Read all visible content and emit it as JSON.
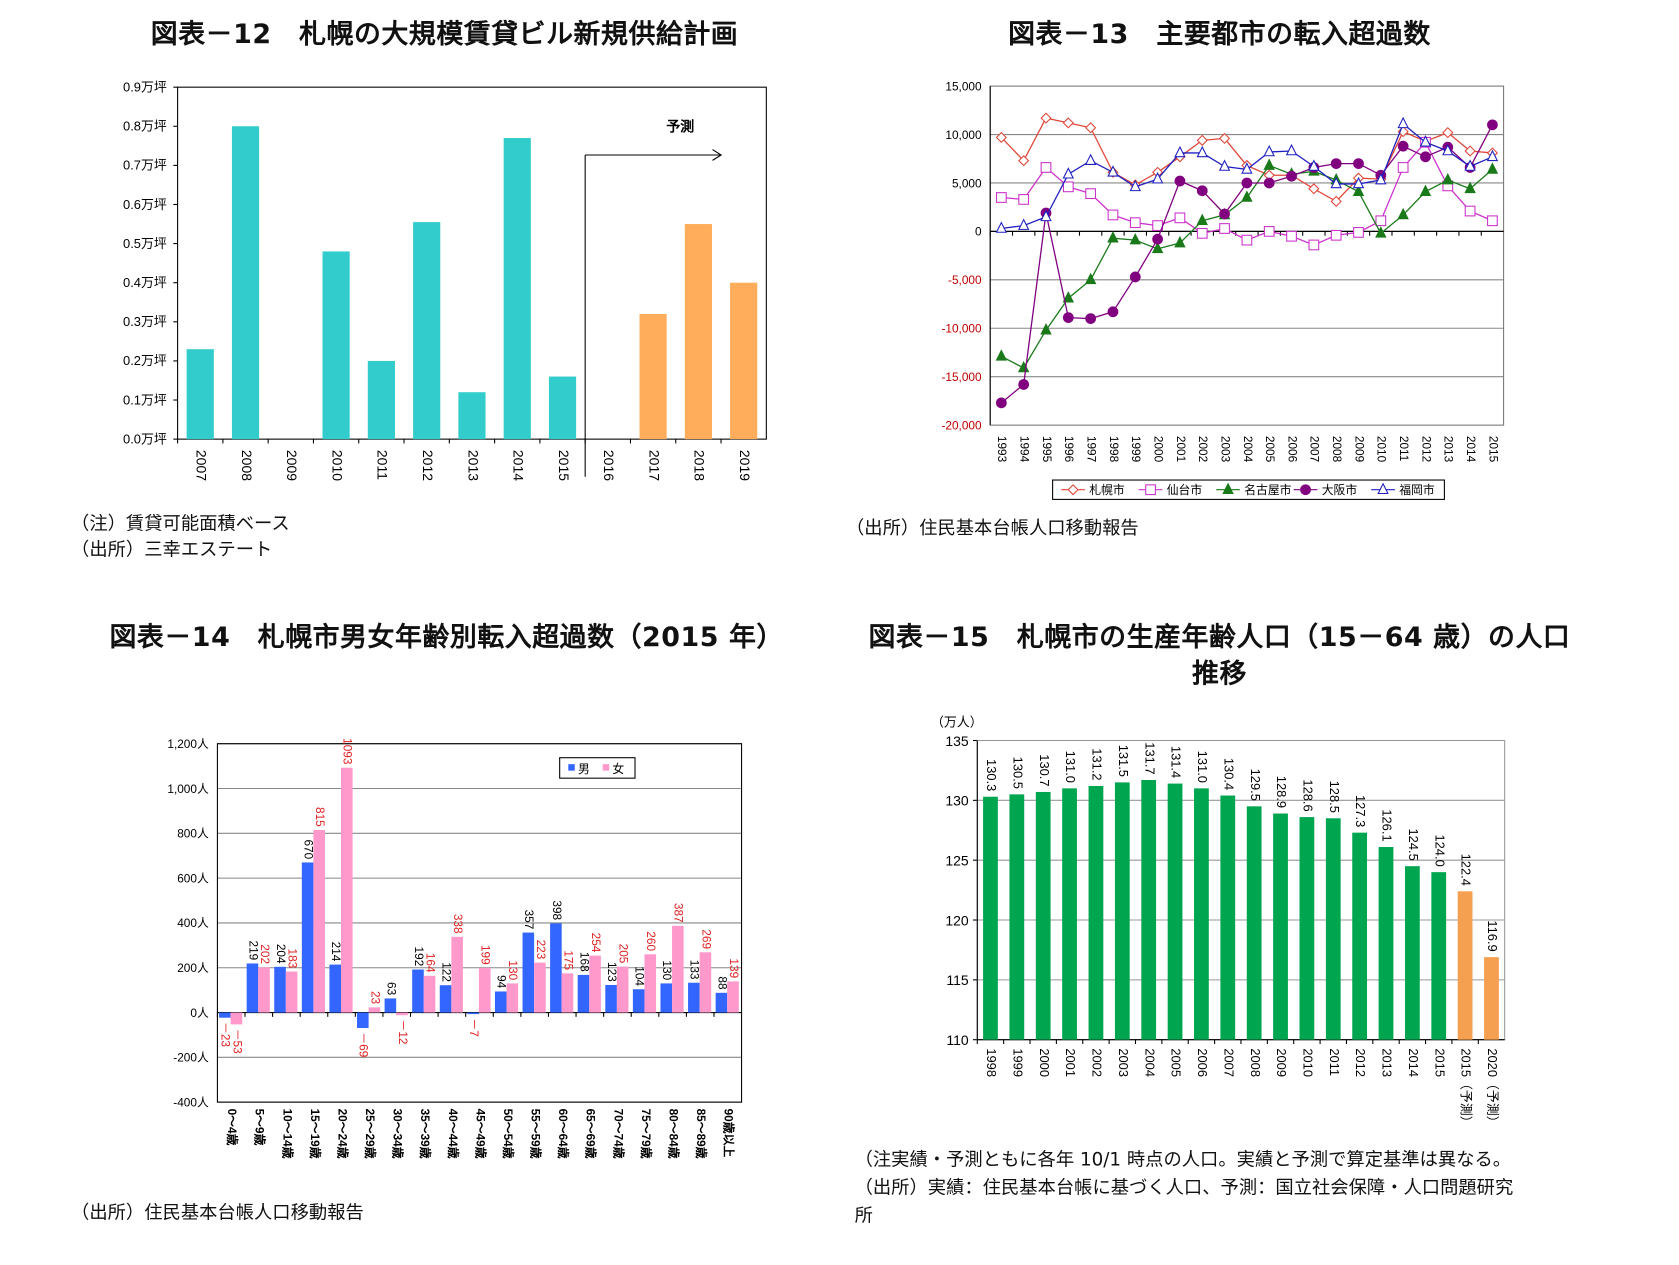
{
  "chart_data": [
    {
      "id": "fig12",
      "type": "bar",
      "title": "図表－12　札幌の大規模賃貸ビル新規供給計画",
      "categories": [
        "2007",
        "2008",
        "2009",
        "2010",
        "2011",
        "2012",
        "2013",
        "2014",
        "2015",
        "2016",
        "2017",
        "2018",
        "2019"
      ],
      "values": [
        0.23,
        0.8,
        0,
        0.48,
        0.2,
        0.555,
        0.12,
        0.77,
        0.16,
        0,
        0.32,
        0.55,
        0.4
      ],
      "forecast": [
        false,
        false,
        false,
        false,
        false,
        false,
        false,
        false,
        false,
        true,
        true,
        true,
        true
      ],
      "ylim": [
        0,
        0.9
      ],
      "yticks": [
        "0.0万坪",
        "0.1万坪",
        "0.2万坪",
        "0.3万坪",
        "0.4万坪",
        "0.5万坪",
        "0.6万坪",
        "0.7万坪",
        "0.8万坪",
        "0.9万坪"
      ],
      "annotation": "予測",
      "grid": false,
      "colors": {
        "actual": "#33CCCC",
        "forecast": "#FFAD5B"
      },
      "notes": [
        "（注）賃貸可能面積ベース",
        "（出所）三幸エステート"
      ]
    },
    {
      "id": "fig13",
      "type": "line",
      "title": "図表－13　主要都市の転入超過数",
      "x": [
        "1993",
        "1994",
        "1995",
        "1996",
        "1997",
        "1998",
        "1999",
        "2000",
        "2001",
        "2002",
        "2003",
        "2004",
        "2005",
        "2006",
        "2007",
        "2008",
        "2009",
        "2010",
        "2011",
        "2012",
        "2013",
        "2014",
        "2015"
      ],
      "ylim": [
        -20000,
        15000
      ],
      "yticks": [
        "-20,000",
        "-15,000",
        "-10,000",
        "-5,000",
        "0",
        "5,000",
        "10,000",
        "15,000"
      ],
      "grid": true,
      "legend": "bottom",
      "series": [
        {
          "name": "札幌市",
          "color": "#E0473A",
          "marker": "diamond-open",
          "values": [
            9700,
            7300,
            11700,
            11200,
            10700,
            6100,
            4800,
            6100,
            7700,
            9400,
            9600,
            6800,
            5800,
            5800,
            4400,
            3100,
            5500,
            5400,
            10300,
            9300,
            10200,
            8300,
            8100
          ]
        },
        {
          "name": "仙台市",
          "color": "#CC33CC",
          "marker": "square-open",
          "values": [
            3500,
            3300,
            6600,
            4600,
            3900,
            1700,
            900,
            600,
            1400,
            -200,
            300,
            -900,
            0,
            -500,
            -1400,
            -400,
            -100,
            1100,
            6600,
            9200,
            4700,
            2100,
            1100
          ]
        },
        {
          "name": "名古屋市",
          "color": "#1A7A1A",
          "marker": "triangle-filled",
          "values": [
            -12900,
            -14100,
            -10200,
            -6900,
            -5000,
            -700,
            -900,
            -1800,
            -1200,
            1100,
            1700,
            3500,
            6800,
            5900,
            6200,
            5300,
            4100,
            -200,
            1700,
            4100,
            5300,
            4400,
            6400
          ]
        },
        {
          "name": "大阪市",
          "color": "#800080",
          "marker": "circle-filled",
          "values": [
            -17700,
            -15800,
            1900,
            -8900,
            -9000,
            -8300,
            -4700,
            -800,
            5200,
            4200,
            1800,
            5000,
            5000,
            5700,
            6600,
            7000,
            7000,
            5800,
            8800,
            7700,
            8700,
            6600,
            11000
          ]
        },
        {
          "name": "福岡市",
          "color": "#2020C0",
          "marker": "triangle-open",
          "values": [
            300,
            600,
            1500,
            5900,
            7300,
            6100,
            4600,
            5400,
            8100,
            8100,
            6700,
            6400,
            8200,
            8300,
            6700,
            4900,
            4900,
            5300,
            11100,
            9200,
            8300,
            6700,
            7700
          ]
        }
      ],
      "notes": [
        "（出所）住民基本台帳人口移動報告"
      ]
    },
    {
      "id": "fig14",
      "type": "bar",
      "title": "図表－14　札幌市男女年齢別転入超過数（2015 年）",
      "categories": [
        "0～4歳",
        "5～9歳",
        "10～14歳",
        "15～19歳",
        "20～24歳",
        "25～29歳",
        "30～34歳",
        "35～39歳",
        "40～44歳",
        "45～49歳",
        "50～54歳",
        "55～59歳",
        "60～64歳",
        "65～69歳",
        "70～74歳",
        "75～79歳",
        "80～84歳",
        "85～89歳",
        "90歳以上"
      ],
      "series": [
        {
          "name": "男",
          "color": "#3366FF",
          "values": [
            -23,
            219,
            204,
            670,
            214,
            -69,
            63,
            192,
            122,
            -7,
            94,
            357,
            398,
            168,
            123,
            104,
            130,
            133,
            88
          ]
        },
        {
          "name": "女",
          "color": "#FF99CC",
          "values": [
            -53,
            202,
            183,
            815,
            1093,
            23,
            -12,
            164,
            338,
            199,
            130,
            223,
            175,
            254,
            205,
            260,
            387,
            269,
            139
          ]
        }
      ],
      "ylim": [
        -400,
        1200
      ],
      "yticks": [
        "-400人",
        "-200人",
        "0人",
        "200人",
        "400人",
        "600人",
        "800人",
        "1,000人",
        "1,200人"
      ],
      "grid": true,
      "legend": "top-right",
      "notes": [
        "（出所）住民基本台帳人口移動報告"
      ]
    },
    {
      "id": "fig15",
      "type": "bar",
      "title": [
        "図表－15　札幌市の生産年齢人口（15－64 歳）の人口",
        "推移"
      ],
      "ylabel": "（万人）",
      "categories": [
        "1998",
        "1999",
        "2000",
        "2001",
        "2002",
        "2003",
        "2004",
        "2005",
        "2006",
        "2007",
        "2008",
        "2009",
        "2010",
        "2011",
        "2012",
        "2013",
        "2014",
        "2015",
        "2015（予測）",
        "2020（予測）"
      ],
      "values": [
        130.3,
        130.5,
        130.7,
        131.0,
        131.2,
        131.5,
        131.7,
        131.4,
        131.0,
        130.4,
        129.5,
        128.9,
        128.6,
        128.5,
        127.3,
        126.1,
        124.5,
        124.0,
        122.4,
        116.9
      ],
      "labels": [
        "130.3",
        "130.5",
        "130.7",
        "131.0",
        "131.2",
        "131.5",
        "131.7",
        "131.4",
        "131.0",
        "130.4",
        "129.5",
        "128.9",
        "128.6",
        "128.5",
        "127.3",
        "126.1",
        "124.5",
        "124.0",
        "122.4",
        "116.9"
      ],
      "forecast": [
        false,
        false,
        false,
        false,
        false,
        false,
        false,
        false,
        false,
        false,
        false,
        false,
        false,
        false,
        false,
        false,
        false,
        false,
        true,
        true
      ],
      "ylim": [
        110,
        135
      ],
      "yticks": [
        "110",
        "115",
        "120",
        "125",
        "130",
        "135"
      ],
      "grid": true,
      "colors": {
        "actual": "#00A550",
        "forecast": "#F5A050"
      },
      "notes": [
        "（注実績・予測ともに各年 10/1 時点の人口。実績と予測で算定基準は異なる。",
        "（出所）実績：住民基本台帳に基づく人口、予測：国立社会保障・人口問題研究",
        "所"
      ]
    }
  ]
}
